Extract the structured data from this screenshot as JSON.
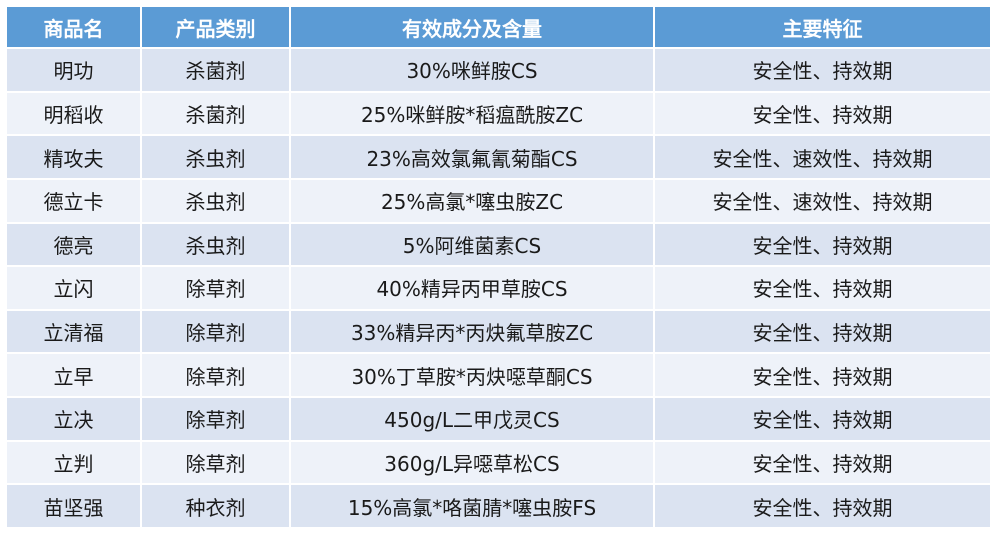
{
  "table": {
    "headers": [
      "商品名",
      "产品类别",
      "有效成分及含量",
      "主要特征"
    ],
    "rows": [
      [
        "明功",
        "杀菌剂",
        "30%咪鲜胺CS",
        "安全性、持效期"
      ],
      [
        "明稻收",
        "杀菌剂",
        "25%咪鲜胺*稻瘟酰胺ZC",
        "安全性、持效期"
      ],
      [
        "精攻夫",
        "杀虫剂",
        "23%高效氯氟氰菊酯CS",
        "安全性、速效性、持效期"
      ],
      [
        "德立卡",
        "杀虫剂",
        "25%高氯*噻虫胺ZC",
        "安全性、速效性、持效期"
      ],
      [
        "德亮",
        "杀虫剂",
        "5%阿维菌素CS",
        "安全性、持效期"
      ],
      [
        "立闪",
        "除草剂",
        "40%精异丙甲草胺CS",
        "安全性、持效期"
      ],
      [
        "立清福",
        "除草剂",
        "33%精异丙*丙炔氟草胺ZC",
        "安全性、持效期"
      ],
      [
        "立早",
        "除草剂",
        "30%丁草胺*丙炔噁草酮CS",
        "安全性、持效期"
      ],
      [
        "立决",
        "除草剂",
        "450g/L二甲戊灵CS",
        "安全性、持效期"
      ],
      [
        "立判",
        "除草剂",
        "360g/L异噁草松CS",
        "安全性、持效期"
      ],
      [
        "苗坚强",
        "种衣剂",
        "15%高氯*咯菌腈*噻虫胺FS",
        "安全性、持效期"
      ]
    ]
  },
  "colors": {
    "header_bg": "#5b9bd5",
    "header_text": "#ffffff",
    "row_odd_bg": "#dbe3f1",
    "row_even_bg": "#eef2f9"
  }
}
